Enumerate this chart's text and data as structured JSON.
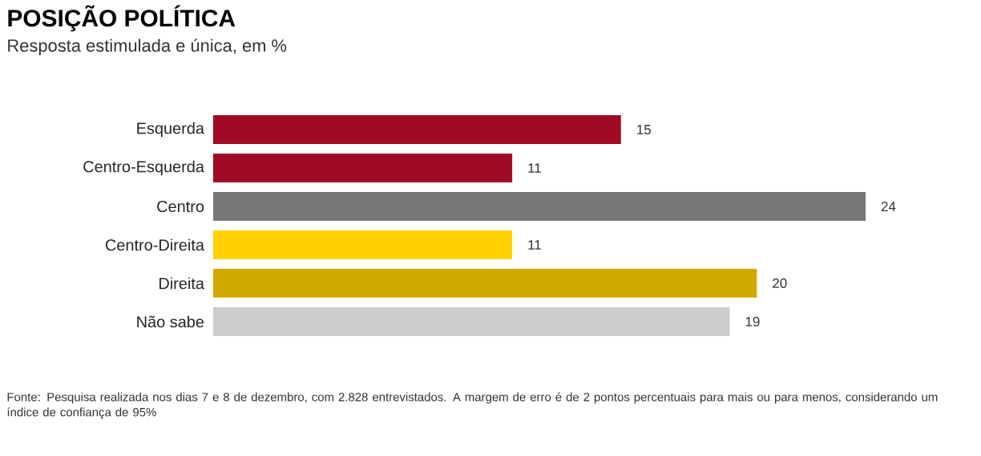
{
  "chart_data": {
    "type": "bar",
    "orientation": "horizontal",
    "title": "POSIÇÃO POLÍTICA",
    "subtitle": "Resposta estimulada e única, em %",
    "categories": [
      "Esquerda",
      "Centro-Esquerda",
      "Centro",
      "Centro-Direita",
      "Direita",
      "Não sabe"
    ],
    "values": [
      15,
      11,
      24,
      11,
      20,
      19
    ],
    "colors": [
      "#a00a24",
      "#a00a24",
      "#777777",
      "#ffd200",
      "#d1aa00",
      "#cccccc"
    ],
    "data_labels": true,
    "annotations": [
      "Fonte: Pesquisa realizada nos dias 7 e 8 de dezembro, com 2.828 entrevistados. A margem de erro é de 2 pontos percentuais para mais ou para menos, considerando um índice de confiança de 95%"
    ]
  }
}
